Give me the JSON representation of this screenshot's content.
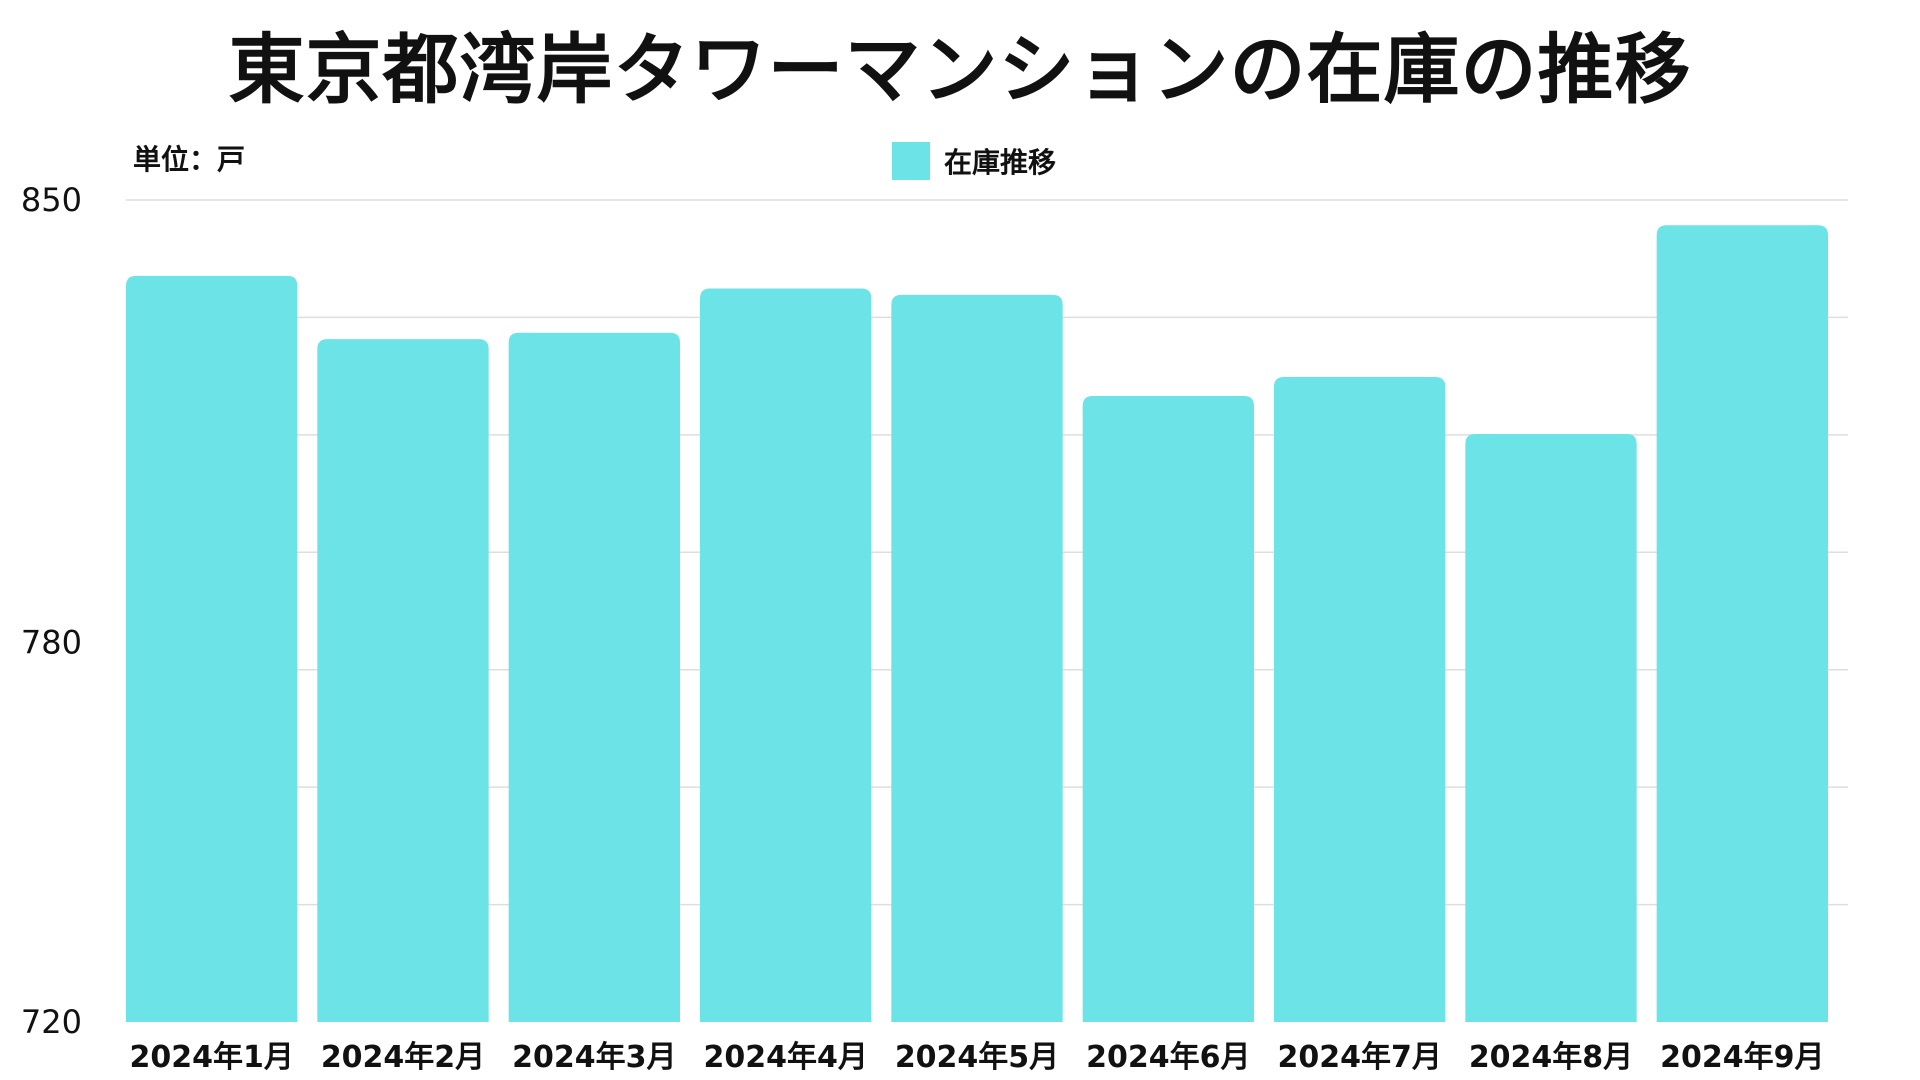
{
  "chart_data": {
    "type": "bar",
    "title": "東京都湾岸タワーマンションの在庫の推移",
    "unit_label": "単位：戸",
    "categories": [
      "2024年1月",
      "2024年2月",
      "2024年3月",
      "2024年4月",
      "2024年5月",
      "2024年6月",
      "2024年7月",
      "2024年8月",
      "2024年9月"
    ],
    "series": [
      {
        "name": "在庫推移",
        "color": "#6ce4e7",
        "values": [
          838,
          828,
          829,
          836,
          835,
          819,
          822,
          813,
          846
        ]
      }
    ],
    "y_ticks": [
      "850",
      "780",
      "720"
    ],
    "ylim": [
      720,
      850
    ],
    "grid": true,
    "legend_position": "top-center"
  }
}
